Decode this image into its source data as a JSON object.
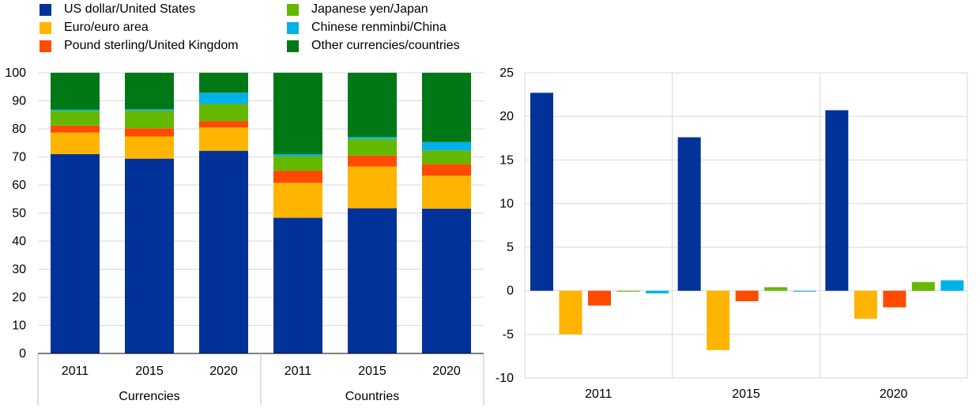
{
  "legend": [
    {
      "label": "US dollar/United States",
      "color": "#003299"
    },
    {
      "label": "Euro/euro area",
      "color": "#FFB400"
    },
    {
      "label": "Pound sterling/United Kingdom",
      "color": "#FF4B00"
    },
    {
      "label": "Japanese yen/Japan",
      "color": "#65B800"
    },
    {
      "label": "Chinese renminbi/China",
      "color": "#00B1EA"
    },
    {
      "label": "Other currencies/countries",
      "color": "#007816"
    }
  ],
  "chart_data": [
    {
      "type": "bar",
      "stacked": true,
      "ylim": [
        0,
        100
      ],
      "yticks": [
        0,
        10,
        20,
        30,
        40,
        50,
        60,
        70,
        80,
        90,
        100
      ],
      "grid": true,
      "groups": [
        {
          "label": "Currencies",
          "categories": [
            "2011",
            "2015",
            "2020"
          ]
        },
        {
          "label": "Countries",
          "categories": [
            "2011",
            "2015",
            "2020"
          ]
        }
      ],
      "categories": [
        "2011",
        "2015",
        "2020",
        "2011",
        "2015",
        "2020"
      ],
      "series": [
        {
          "name": "US dollar/United States",
          "values": [
            71.0,
            69.4,
            72.2,
            48.3,
            51.7,
            51.6
          ]
        },
        {
          "name": "Euro/euro area",
          "values": [
            7.7,
            7.9,
            8.3,
            12.5,
            14.9,
            11.7
          ]
        },
        {
          "name": "Pound sterling/United Kingdom",
          "values": [
            2.5,
            2.9,
            2.3,
            4.3,
            3.9,
            4.2
          ]
        },
        {
          "name": "Japanese yen/Japan",
          "values": [
            5.2,
            6.3,
            6.1,
            5.2,
            5.9,
            4.8
          ]
        },
        {
          "name": "Chinese renminbi/China",
          "values": [
            0.5,
            0.5,
            4.0,
            0.7,
            0.7,
            3.0
          ]
        },
        {
          "name": "Other currencies/countries",
          "values": [
            13.1,
            13.0,
            7.1,
            29.0,
            22.9,
            24.7
          ]
        }
      ]
    },
    {
      "type": "bar",
      "ylim": [
        -10,
        25
      ],
      "yticks": [
        -10,
        -5,
        0,
        5,
        10,
        15,
        20,
        25
      ],
      "grid": true,
      "categories": [
        "2011",
        "2015",
        "2020"
      ],
      "series": [
        {
          "name": "US dollar/United States",
          "values": [
            22.7,
            17.6,
            20.7
          ]
        },
        {
          "name": "Euro/euro area",
          "values": [
            -5.0,
            -6.8,
            -3.2
          ]
        },
        {
          "name": "Pound sterling/United Kingdom",
          "values": [
            -1.7,
            -1.2,
            -1.9
          ]
        },
        {
          "name": "Japanese yen/Japan",
          "values": [
            -0.1,
            0.4,
            1.0
          ]
        },
        {
          "name": "Chinese renminbi/China",
          "values": [
            -0.3,
            -0.1,
            1.2
          ]
        }
      ]
    }
  ]
}
